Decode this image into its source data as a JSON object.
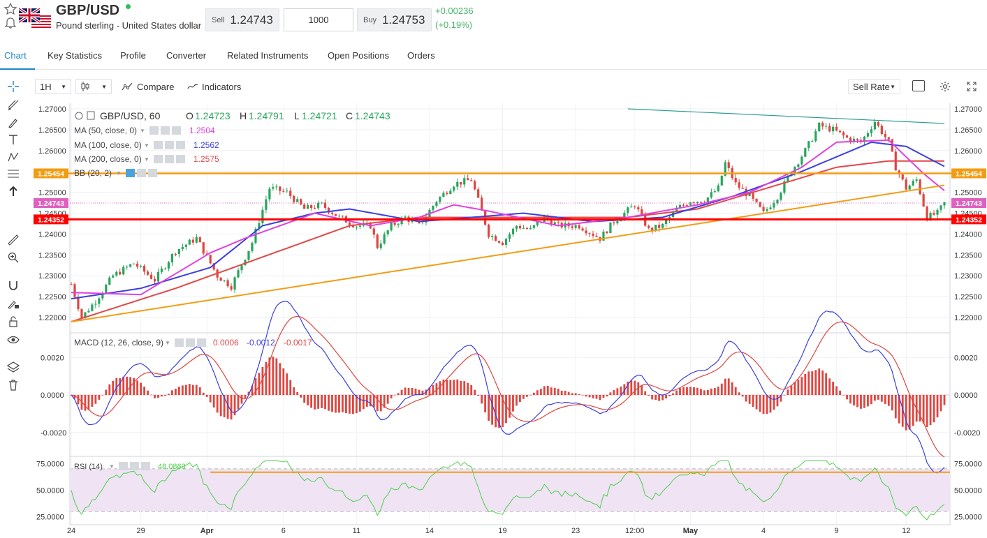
{
  "header": {
    "symbol": "GBP/USD",
    "description": "Pound sterling - United States dollar",
    "sell_label": "Sell",
    "sell_price": "1.24743",
    "quantity": "1000",
    "buy_label": "Buy",
    "buy_price": "1.24753",
    "change_abs": "+0.00236",
    "change_pct": "(+0.19%)"
  },
  "tabs": [
    "Chart",
    "Key Statistics",
    "Profile",
    "Converter",
    "Related Instruments",
    "Open Positions",
    "Orders"
  ],
  "toolbar": {
    "interval": "1H",
    "compare_label": "Compare",
    "indicators_label": "Indicators",
    "rate_mode": "Sell Rate"
  },
  "legend": {
    "title": "GBP/USD, 60",
    "o_label": "O",
    "o_val": "1.24723",
    "h_label": "H",
    "h_val": "1.24791",
    "l_label": "L",
    "l_val": "1.24721",
    "c_label": "C",
    "c_val": "1.24743",
    "ma50": "MA (50, close, 0)",
    "ma50_val": "1.2504",
    "ma100": "MA (100, close, 0)",
    "ma100_val": "1.2562",
    "ma200": "MA (200, close, 0)",
    "ma200_val": "1.2575",
    "bb": "BB (20, 2)",
    "macd": "MACD (12, 26, close, 9)",
    "macd_v1": "0.0006",
    "macd_v2": "-0.0012",
    "macd_v3": "-0.0017",
    "rsi": "RSI (14)",
    "rsi_val": "48.0863"
  },
  "price_axis": [
    "1.27000",
    "1.26500",
    "1.26000",
    "1.25500",
    "1.25000",
    "1.24500",
    "1.24000",
    "1.23500",
    "1.23000",
    "1.22500",
    "1.22000"
  ],
  "price_tags": {
    "upper": "1.25454",
    "current": "1.24743",
    "lower": "1.24352"
  },
  "macd_axis": [
    "0.0020",
    "0.0000",
    "-0.0020"
  ],
  "rsi_axis": [
    "75.0000",
    "50.0000",
    "25.0000"
  ],
  "time_axis": [
    "24",
    "29",
    "Apr",
    "6",
    "11",
    "14",
    "19",
    "23",
    "12:00",
    "May",
    "4",
    "9",
    "12"
  ],
  "colors": {
    "up": "#26a65b",
    "down": "#e0443e",
    "ma50": "#e040e0",
    "ma100": "#3b3fe0",
    "ma200": "#e04848",
    "support": "#ff0000",
    "resistance": "#f39c12",
    "trend": "#f39c12",
    "accent": "#1c84c6",
    "rsi": "#4cd04c"
  },
  "icons": [
    "star-icon",
    "bell-icon",
    "crosshair-icon",
    "line-tool-icon",
    "brush-icon",
    "text-icon",
    "pattern-icon",
    "fib-icon",
    "arrow-icon",
    "ruler-icon",
    "zoom-icon",
    "magnet-icon",
    "lock-draw-icon",
    "lock-icon",
    "eye-icon",
    "layers-icon",
    "trash-icon"
  ],
  "chart_data": {
    "type": "candlestick",
    "symbol": "GBP/USD",
    "interval": "60",
    "ylim": [
      1.2175,
      1.271
    ],
    "price_path": [
      [
        0,
        1.228
      ],
      [
        3,
        1.22
      ],
      [
        7,
        1.224
      ],
      [
        12,
        1.23
      ],
      [
        18,
        1.233
      ],
      [
        24,
        1.229
      ],
      [
        30,
        1.236
      ],
      [
        36,
        1.239
      ],
      [
        42,
        1.23
      ],
      [
        46,
        1.2275
      ],
      [
        52,
        1.238
      ],
      [
        57,
        1.251
      ],
      [
        62,
        1.25
      ],
      [
        67,
        1.246
      ],
      [
        72,
        1.247
      ],
      [
        77,
        1.244
      ],
      [
        82,
        1.242
      ],
      [
        86,
        1.242
      ],
      [
        88,
        1.237
      ],
      [
        92,
        1.242
      ],
      [
        96,
        1.244
      ],
      [
        100,
        1.242
      ],
      [
        105,
        1.248
      ],
      [
        110,
        1.252
      ],
      [
        115,
        1.253
      ],
      [
        117,
        1.248
      ],
      [
        120,
        1.24
      ],
      [
        124,
        1.238
      ],
      [
        128,
        1.242
      ],
      [
        132,
        1.241
      ],
      [
        136,
        1.244
      ],
      [
        140,
        1.242
      ],
      [
        146,
        1.242
      ],
      [
        152,
        1.239
      ],
      [
        156,
        1.243
      ],
      [
        162,
        1.247
      ],
      [
        166,
        1.241
      ],
      [
        170,
        1.242
      ],
      [
        174,
        1.246
      ],
      [
        178,
        1.248
      ],
      [
        182,
        1.248
      ],
      [
        186,
        1.251
      ],
      [
        188,
        1.257
      ],
      [
        191,
        1.252
      ],
      [
        195,
        1.249
      ],
      [
        199,
        1.245
      ],
      [
        203,
        1.249
      ],
      [
        207,
        1.255
      ],
      [
        211,
        1.26
      ],
      [
        215,
        1.266
      ],
      [
        219,
        1.265
      ],
      [
        223,
        1.263
      ],
      [
        227,
        1.262
      ],
      [
        231,
        1.267
      ],
      [
        235,
        1.262
      ],
      [
        237,
        1.256
      ],
      [
        240,
        1.251
      ],
      [
        243,
        1.253
      ],
      [
        246,
        1.244
      ],
      [
        249,
        1.245
      ],
      [
        251,
        1.2474
      ]
    ],
    "ma50": [
      [
        0,
        1.226
      ],
      [
        20,
        1.2255
      ],
      [
        40,
        1.2355
      ],
      [
        50,
        1.239
      ],
      [
        70,
        1.245
      ],
      [
        86,
        1.242
      ],
      [
        100,
        1.244
      ],
      [
        110,
        1.247
      ],
      [
        120,
        1.2455
      ],
      [
        140,
        1.242
      ],
      [
        160,
        1.244
      ],
      [
        180,
        1.247
      ],
      [
        195,
        1.25
      ],
      [
        210,
        1.256
      ],
      [
        220,
        1.262
      ],
      [
        235,
        1.2625
      ],
      [
        245,
        1.2545
      ],
      [
        251,
        1.2504
      ]
    ],
    "ma100": [
      [
        0,
        1.2245
      ],
      [
        20,
        1.227
      ],
      [
        40,
        1.232
      ],
      [
        55,
        1.242
      ],
      [
        70,
        1.245
      ],
      [
        80,
        1.246
      ],
      [
        100,
        1.243
      ],
      [
        130,
        1.245
      ],
      [
        150,
        1.243
      ],
      [
        170,
        1.244
      ],
      [
        190,
        1.249
      ],
      [
        210,
        1.255
      ],
      [
        230,
        1.262
      ],
      [
        240,
        1.261
      ],
      [
        251,
        1.2562
      ]
    ],
    "ma200": [
      [
        0,
        1.219
      ],
      [
        30,
        1.227
      ],
      [
        60,
        1.236
      ],
      [
        80,
        1.242
      ],
      [
        100,
        1.244
      ],
      [
        130,
        1.244
      ],
      [
        160,
        1.244
      ],
      [
        180,
        1.246
      ],
      [
        200,
        1.251
      ],
      [
        220,
        1.256
      ],
      [
        235,
        1.2575
      ],
      [
        251,
        1.2575
      ]
    ],
    "trendlines": [
      {
        "from": [
          0,
          1.219
        ],
        "to": [
          251,
          1.2517
        ],
        "color": "orange"
      },
      {
        "from": [
          160,
          1.27
        ],
        "to": [
          251,
          1.2665
        ],
        "color": "teal"
      }
    ],
    "hlines": [
      {
        "value": 1.25454,
        "color": "orange"
      },
      {
        "value": 1.24352,
        "color": "red"
      },
      {
        "value": 1.24743,
        "color": "dotted"
      }
    ],
    "macd_ylim": [
      -0.0032,
      0.0032
    ],
    "rsi_ylim": [
      20,
      80
    ],
    "rsi_bands": [
      70,
      30
    ],
    "rsi_line": 67
  }
}
